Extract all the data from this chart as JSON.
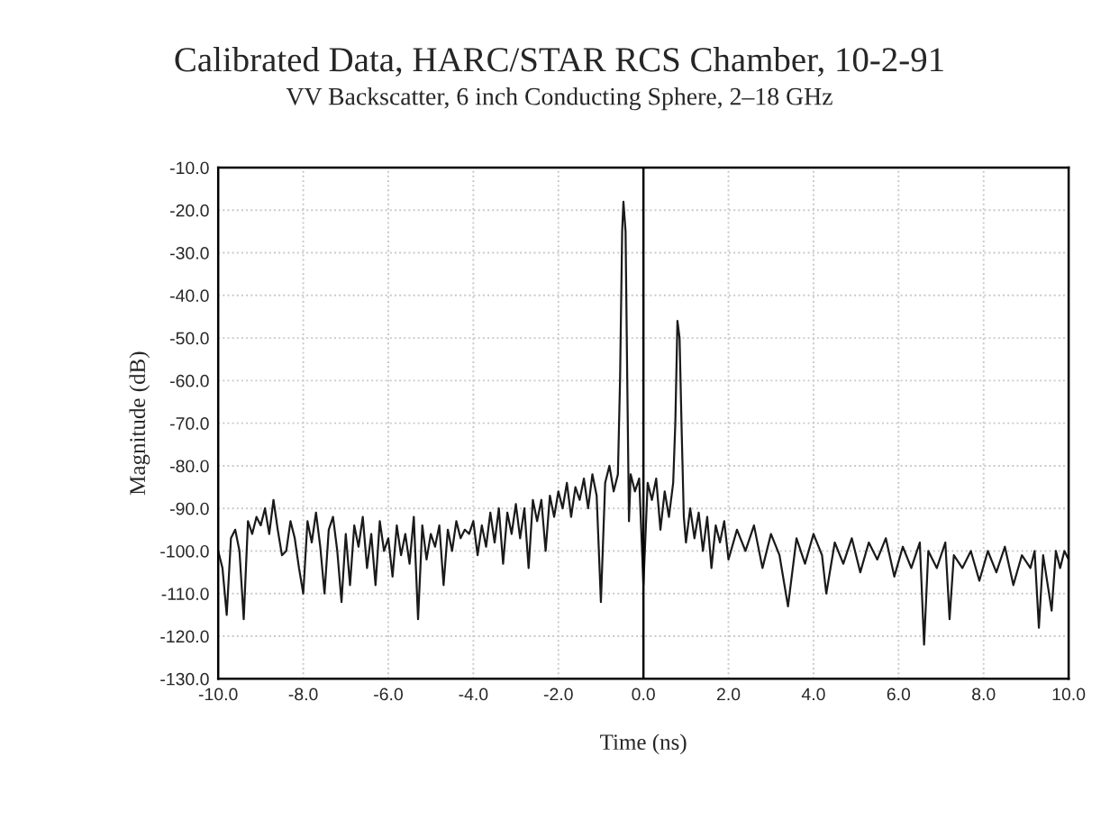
{
  "chart_data": {
    "type": "line",
    "title": "Calibrated Data, HARC/STAR RCS Chamber, 10-2-91",
    "subtitle": "VV Backscatter, 6 inch Conducting Sphere, 2–18 GHz",
    "xlabel": "Time (ns)",
    "ylabel": "Magnitude (dB)",
    "xlim": [
      -10,
      10
    ],
    "ylim": [
      -130,
      -10
    ],
    "xticks": [
      {
        "value": -10,
        "label": "-10.0"
      },
      {
        "value": -8,
        "label": "-8.0"
      },
      {
        "value": -6,
        "label": "-6.0"
      },
      {
        "value": -4,
        "label": "-4.0"
      },
      {
        "value": -2,
        "label": "-2.0"
      },
      {
        "value": 0,
        "label": "0.0"
      },
      {
        "value": 2,
        "label": "2.0"
      },
      {
        "value": 4,
        "label": "4.0"
      },
      {
        "value": 6,
        "label": "6.0"
      },
      {
        "value": 8,
        "label": "8.0"
      },
      {
        "value": 10,
        "label": "10.0"
      }
    ],
    "yticks": [
      {
        "value": -10,
        "label": "-10.0"
      },
      {
        "value": -20,
        "label": "-20.0"
      },
      {
        "value": -30,
        "label": "-30.0"
      },
      {
        "value": -40,
        "label": "-40.0"
      },
      {
        "value": -50,
        "label": "-50.0"
      },
      {
        "value": -60,
        "label": "-60.0"
      },
      {
        "value": -70,
        "label": "-70.0"
      },
      {
        "value": -80,
        "label": "-80.0"
      },
      {
        "value": -90,
        "label": "-90.0"
      },
      {
        "value": -100,
        "label": "-100.0"
      },
      {
        "value": -110,
        "label": "-110.0"
      },
      {
        "value": -120,
        "label": "-120.0"
      },
      {
        "value": -130,
        "label": "-130.0"
      }
    ],
    "grid": true,
    "line_style": "solid",
    "ref_lines": [
      {
        "axis": "x",
        "value": 0,
        "color": "#000000",
        "line_style": "solid"
      }
    ],
    "series": [
      {
        "color": "#1a1a1a",
        "x": [
          -10.0,
          -9.9,
          -9.8,
          -9.7,
          -9.6,
          -9.5,
          -9.4,
          -9.3,
          -9.2,
          -9.1,
          -9.0,
          -8.9,
          -8.8,
          -8.7,
          -8.6,
          -8.5,
          -8.4,
          -8.3,
          -8.2,
          -8.1,
          -8.0,
          -7.9,
          -7.8,
          -7.7,
          -7.6,
          -7.5,
          -7.4,
          -7.3,
          -7.2,
          -7.1,
          -7.0,
          -6.9,
          -6.8,
          -6.7,
          -6.6,
          -6.5,
          -6.4,
          -6.3,
          -6.2,
          -6.1,
          -6.0,
          -5.9,
          -5.8,
          -5.7,
          -5.6,
          -5.5,
          -5.4,
          -5.3,
          -5.2,
          -5.1,
          -5.0,
          -4.9,
          -4.8,
          -4.7,
          -4.6,
          -4.5,
          -4.4,
          -4.3,
          -4.2,
          -4.1,
          -4.0,
          -3.9,
          -3.8,
          -3.7,
          -3.6,
          -3.5,
          -3.4,
          -3.3,
          -3.2,
          -3.1,
          -3.0,
          -2.9,
          -2.8,
          -2.7,
          -2.6,
          -2.5,
          -2.4,
          -2.3,
          -2.2,
          -2.1,
          -2.0,
          -1.9,
          -1.8,
          -1.7,
          -1.6,
          -1.5,
          -1.4,
          -1.3,
          -1.2,
          -1.1,
          -1.0,
          -0.9,
          -0.8,
          -0.7,
          -0.6,
          -0.55,
          -0.5,
          -0.47,
          -0.42,
          -0.38,
          -0.34,
          -0.3,
          -0.2,
          -0.1,
          0.0,
          0.1,
          0.2,
          0.3,
          0.4,
          0.5,
          0.6,
          0.7,
          0.75,
          0.8,
          0.85,
          0.9,
          0.95,
          1.0,
          1.1,
          1.2,
          1.3,
          1.4,
          1.5,
          1.6,
          1.7,
          1.8,
          1.9,
          2.0,
          2.2,
          2.4,
          2.6,
          2.8,
          3.0,
          3.2,
          3.4,
          3.6,
          3.8,
          4.0,
          4.2,
          4.3,
          4.5,
          4.7,
          4.9,
          5.1,
          5.3,
          5.5,
          5.7,
          5.9,
          6.1,
          6.3,
          6.5,
          6.6,
          6.7,
          6.9,
          7.1,
          7.2,
          7.3,
          7.5,
          7.7,
          7.9,
          8.1,
          8.3,
          8.5,
          8.7,
          8.9,
          9.1,
          9.2,
          9.3,
          9.4,
          9.6,
          9.7,
          9.8,
          9.9,
          10.0
        ],
        "values": [
          -100,
          -104,
          -115,
          -97,
          -95,
          -100,
          -116,
          -93,
          -96,
          -92,
          -94,
          -90,
          -96,
          -88,
          -95,
          -101,
          -100,
          -93,
          -97,
          -104,
          -110,
          -93,
          -98,
          -91,
          -99,
          -110,
          -95,
          -92,
          -100,
          -112,
          -96,
          -108,
          -94,
          -99,
          -92,
          -104,
          -96,
          -108,
          -93,
          -100,
          -97,
          -106,
          -94,
          -101,
          -96,
          -103,
          -92,
          -116,
          -94,
          -102,
          -96,
          -99,
          -94,
          -108,
          -95,
          -100,
          -93,
          -97,
          -95,
          -96,
          -93,
          -101,
          -94,
          -99,
          -91,
          -98,
          -90,
          -103,
          -91,
          -96,
          -89,
          -97,
          -90,
          -104,
          -88,
          -93,
          -88,
          -100,
          -87,
          -92,
          -86,
          -90,
          -84,
          -92,
          -85,
          -88,
          -83,
          -90,
          -82,
          -87,
          -112,
          -84,
          -80,
          -86,
          -82,
          -60,
          -25,
          -18,
          -25,
          -60,
          -93,
          -82,
          -86,
          -83,
          -108,
          -84,
          -88,
          -83,
          -95,
          -86,
          -92,
          -84,
          -70,
          -46,
          -50,
          -72,
          -92,
          -98,
          -90,
          -97,
          -91,
          -100,
          -92,
          -104,
          -94,
          -98,
          -93,
          -102,
          -95,
          -100,
          -94,
          -104,
          -96,
          -101,
          -113,
          -97,
          -103,
          -96,
          -101,
          -110,
          -98,
          -103,
          -97,
          -105,
          -98,
          -102,
          -97,
          -106,
          -99,
          -104,
          -98,
          -122,
          -100,
          -104,
          -98,
          -116,
          -101,
          -104,
          -100,
          -107,
          -100,
          -105,
          -99,
          -108,
          -101,
          -104,
          -100,
          -118,
          -101,
          -114,
          -100,
          -104,
          -100,
          -102
        ]
      }
    ]
  }
}
